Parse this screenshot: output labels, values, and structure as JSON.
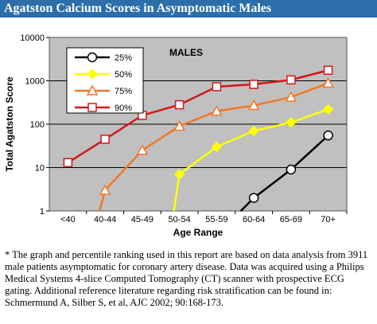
{
  "header": {
    "title": "Agatston Calcium Scores in Asymptomatic Males"
  },
  "footnote": "* The graph and percentile ranking used in this report are based on data analysis from 3911 male patients asymptomatic for coronary artery disease. Data was acquired using a Philips Medical Systems 4-slice Computed Tomography (CT) scanner with prospective ECG gating. Additional reference literature regarding risk stratification can be found in: Schmermund A, Silber S, et al, AJC 2002; 90:168-173.",
  "chart_data": {
    "type": "line",
    "title": "MALES",
    "xlabel": "Age Range",
    "ylabel": "Total Agatston Score",
    "yscale": "log",
    "ylim": [
      1,
      10000
    ],
    "yticks": [
      "1",
      "10",
      "100",
      "1000",
      "10000"
    ],
    "categories": [
      "<40",
      "40-44",
      "45-49",
      "50-54",
      "55-59",
      "60-64",
      "65-69",
      "70+"
    ],
    "series": [
      {
        "name": "25%",
        "color": "#000000",
        "fill": "#ffffff",
        "marker": "circle",
        "values": [
          null,
          null,
          null,
          null,
          null,
          2,
          9,
          55
        ],
        "lead_in_from": null
      },
      {
        "name": "50%",
        "color": "#ffff00",
        "fill": "#ffff00",
        "marker": "diamond",
        "values": [
          null,
          null,
          null,
          7,
          30,
          70,
          110,
          220
        ],
        "lead_in_from": 3
      },
      {
        "name": "75%",
        "color": "#f07828",
        "fill": "#ffffff",
        "marker": "triangle",
        "values": [
          null,
          3,
          25,
          90,
          200,
          270,
          420,
          880
        ],
        "lead_in_from": 1
      },
      {
        "name": "90%",
        "color": "#d41818",
        "fill": "#ffffff",
        "marker": "square",
        "values": [
          13,
          45,
          160,
          280,
          730,
          830,
          1050,
          1750
        ],
        "lead_in_from": null
      }
    ],
    "grid": true,
    "plot_background": "#c0c0c0",
    "legend_position": "top-left"
  }
}
